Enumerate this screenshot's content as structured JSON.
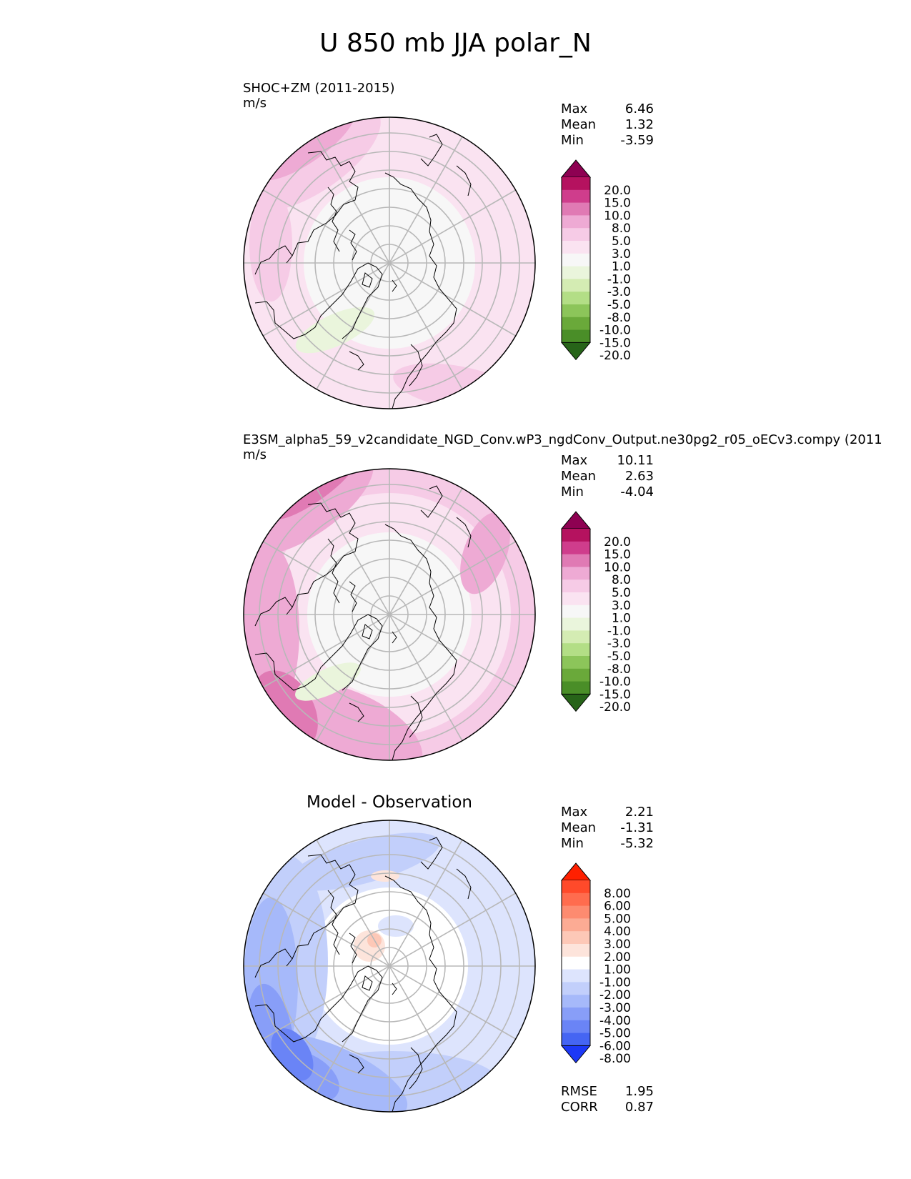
{
  "title": "U 850 mb JJA polar_N",
  "panels": [
    {
      "id": "test",
      "title_line1": "SHOC+ZM (2011-2015)",
      "title_line2": "m/s",
      "stats": [
        {
          "label": "Max",
          "value": "6.46"
        },
        {
          "label": "Mean",
          "value": "1.32"
        },
        {
          "label": "Min",
          "value": "-3.59"
        }
      ],
      "colorbar": {
        "labels": [
          "20.0",
          "15.0",
          "10.0",
          "8.0",
          "5.0",
          "3.0",
          "1.0",
          "-1.0",
          "-3.0",
          "-5.0",
          "-8.0",
          "-10.0",
          "-15.0",
          "-20.0"
        ],
        "colors": [
          "#8e0152",
          "#b5125f",
          "#cf3d8c",
          "#e07ab4",
          "#eeaad4",
          "#f6cbe6",
          "#fae3f1",
          "#f7f7f7",
          "#eaf5dc",
          "#d4ecb3",
          "#b3de86",
          "#8cc55a",
          "#6aa93a",
          "#4a8e28",
          "#276419"
        ]
      }
    },
    {
      "id": "reference",
      "title_line1": "E3SM_alpha5_59_v2candidate_NGD_Conv.wP3_ngdConv_Output.ne30pg2_r05_oECv3.compy (2011",
      "title_line2": "m/s",
      "stats": [
        {
          "label": "Max",
          "value": "10.11"
        },
        {
          "label": "Mean",
          "value": "2.63"
        },
        {
          "label": "Min",
          "value": "-4.04"
        }
      ],
      "colorbar": {
        "labels": [
          "20.0",
          "15.0",
          "10.0",
          "8.0",
          "5.0",
          "3.0",
          "1.0",
          "-1.0",
          "-3.0",
          "-5.0",
          "-8.0",
          "-10.0",
          "-15.0",
          "-20.0"
        ],
        "colors": [
          "#8e0152",
          "#b5125f",
          "#cf3d8c",
          "#e07ab4",
          "#eeaad4",
          "#f6cbe6",
          "#fae3f1",
          "#f7f7f7",
          "#eaf5dc",
          "#d4ecb3",
          "#b3de86",
          "#8cc55a",
          "#6aa93a",
          "#4a8e28",
          "#276419"
        ]
      }
    },
    {
      "id": "difference",
      "title_center": "Model - Observation",
      "stats": [
        {
          "label": "Max",
          "value": "2.21"
        },
        {
          "label": "Mean",
          "value": "-1.31"
        },
        {
          "label": "Min",
          "value": "-5.32"
        }
      ],
      "colorbar": {
        "labels": [
          "8.00",
          "6.00",
          "5.00",
          "4.00",
          "3.00",
          "2.00",
          "1.00",
          "-1.00",
          "-2.00",
          "-3.00",
          "-4.00",
          "-5.00",
          "-6.00",
          "-8.00"
        ],
        "colors": [
          "#ff2000",
          "#ff4a2a",
          "#ff6c4e",
          "#fd8b70",
          "#fcab94",
          "#fdc8b7",
          "#fde4db",
          "#ffffff",
          "#dde4fd",
          "#c2cffb",
          "#a6b9fa",
          "#889ef8",
          "#6a84f6",
          "#4565f3",
          "#1c38f7"
        ]
      },
      "footer_stats": [
        {
          "label": "RMSE",
          "value": "1.95"
        },
        {
          "label": "CORR",
          "value": "0.87"
        }
      ]
    }
  ]
}
